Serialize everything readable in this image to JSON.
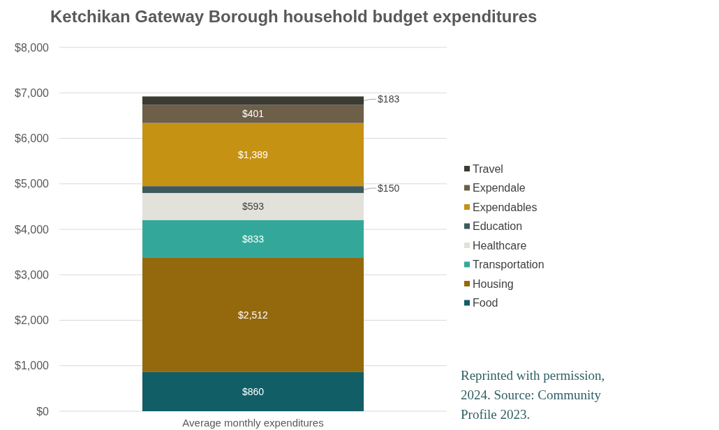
{
  "chart_data": {
    "type": "bar",
    "title": "Ketchikan Gateway Borough household budget expenditures",
    "categories": [
      "Average monthly expenditures"
    ],
    "stacked": true,
    "grid": "y",
    "legend": "right",
    "ylim": [
      0,
      8000
    ],
    "yticks": [
      {
        "value": 0,
        "label": "$0"
      },
      {
        "value": 1000,
        "label": "$1,000"
      },
      {
        "value": 2000,
        "label": "$2,000"
      },
      {
        "value": 3000,
        "label": "$3,000"
      },
      {
        "value": 4000,
        "label": "$4,000"
      },
      {
        "value": 5000,
        "label": "$5,000"
      },
      {
        "value": 6000,
        "label": "$6,000"
      },
      {
        "value": 7000,
        "label": "$7,000"
      },
      {
        "value": 8000,
        "label": "$8,000"
      }
    ],
    "series": [
      {
        "name": "Food",
        "color": "#125e66",
        "values": [
          860
        ],
        "value_labels": [
          "$860"
        ]
      },
      {
        "name": "Housing",
        "color": "#94690e",
        "values": [
          2512
        ],
        "value_labels": [
          "$2,512"
        ]
      },
      {
        "name": "Transportation",
        "color": "#33a89a",
        "values": [
          833
        ],
        "value_labels": [
          "$833"
        ]
      },
      {
        "name": "Healthcare",
        "color": "#e2e1da",
        "values": [
          593
        ],
        "value_labels": [
          "$593"
        ]
      },
      {
        "name": "Education",
        "color": "#3d5a5e",
        "values": [
          150
        ],
        "value_labels": [
          "$150"
        ]
      },
      {
        "name": "Expendables",
        "color": "#c69214",
        "values": [
          1389
        ],
        "value_labels": [
          "$1,389"
        ]
      },
      {
        "name": "Expendale",
        "color": "#6d5f48",
        "values": [
          401
        ],
        "value_labels": [
          "$401"
        ]
      },
      {
        "name": "Travel",
        "color": "#3b3b33",
        "values": [
          183
        ],
        "value_labels": [
          "$183"
        ]
      }
    ],
    "annotations": [
      "Reprinted with permission, 2024. Source: Community Profile 2023."
    ]
  }
}
